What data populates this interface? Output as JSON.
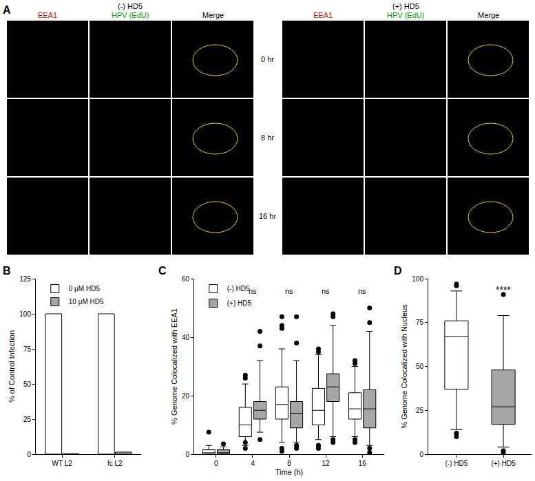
{
  "panel_a": {
    "label": "A",
    "groups": [
      "(-) HD5",
      "(+) HD5"
    ],
    "columns": [
      "EEA1",
      "HPV (EdU)",
      "Merge"
    ],
    "rows": [
      "0 hr",
      "8 hr",
      "16 hr"
    ]
  },
  "chart_data": [
    {
      "title": "B",
      "type": "bar",
      "categories": [
        "WT L2",
        "fc L2"
      ],
      "series": [
        {
          "name": "0 μM HD5",
          "color": "#ffffff",
          "values": [
            100,
            100
          ]
        },
        {
          "name": "10 μM HD5",
          "color": "#a6a6a6",
          "values": [
            0.3,
            1.5
          ]
        }
      ],
      "y_label": "% of Control Infection",
      "ylim": [
        0,
        125
      ],
      "yticks": [
        0,
        25,
        50,
        75,
        100,
        125
      ],
      "legend": "upper left",
      "grid": false
    },
    {
      "title": "C",
      "type": "box",
      "categories": [
        "0",
        "4",
        "8",
        "12",
        "16"
      ],
      "x_label": "Time (h)",
      "y_label": "% Genome Colocalized with EEA1",
      "ylim": [
        0,
        60
      ],
      "yticks": [
        0,
        20,
        40,
        60
      ],
      "legend": "upper left",
      "grid": false,
      "series": [
        {
          "name": "(-) HD5",
          "color": "#ffffff",
          "q1": [
            0,
            6,
            12,
            10,
            12
          ],
          "median": [
            0.5,
            10,
            17,
            15,
            15.5
          ],
          "q3": [
            1.5,
            16,
            23,
            22.5,
            21
          ],
          "lower": [
            0,
            3,
            4,
            5,
            6
          ],
          "upper": [
            3,
            24,
            36,
            34,
            30
          ],
          "outliers": [
            [
              7.5
            ],
            [
              27,
              26,
              4,
              2
            ],
            [
              44,
              43,
              47,
              2,
              1
            ],
            [
              36,
              35,
              3,
              2
            ],
            [
              32,
              31,
              5,
              4
            ]
          ]
        },
        {
          "name": "(+) HD5",
          "color": "#a6a6a6",
          "q1": [
            0,
            12,
            9,
            18,
            9
          ],
          "median": [
            0.5,
            15,
            14,
            23,
            15.5
          ],
          "q3": [
            1.5,
            18,
            18,
            27.5,
            22
          ],
          "lower": [
            0,
            7.5,
            4,
            6,
            3
          ],
          "upper": [
            2.5,
            32,
            32,
            44,
            42
          ],
          "outliers": [
            [
              3.5
            ],
            [
              42,
              37,
              5
            ],
            [
              47,
              38,
              3,
              2
            ],
            [
              48,
              47,
              5,
              4
            ],
            [
              50,
              45,
              2,
              0.5
            ]
          ]
        }
      ],
      "annotations": [
        {
          "category": "4",
          "text": "ns"
        },
        {
          "category": "8",
          "text": "ns"
        },
        {
          "category": "12",
          "text": "ns"
        },
        {
          "category": "16",
          "text": "ns"
        }
      ]
    },
    {
      "title": "D",
      "type": "box",
      "categories": [
        "(-) HD5",
        "(+) HD5"
      ],
      "y_label": "% Genome Colocalized with Nucleus",
      "ylim": [
        0,
        100
      ],
      "yticks": [
        0,
        25,
        50,
        75,
        100
      ],
      "grid": false,
      "series": [
        {
          "colors": [
            "#ffffff",
            "#a6a6a6"
          ],
          "q1": [
            37,
            17
          ],
          "median": [
            67,
            27
          ],
          "q3": [
            76,
            48
          ],
          "lower": [
            14,
            4
          ],
          "upper": [
            93,
            79
          ],
          "outliers": [
            [
              97,
              96,
              12,
              10
            ],
            [
              91,
              2,
              1
            ]
          ]
        }
      ],
      "annotations": [
        {
          "category": "(+) HD5",
          "text": "****"
        }
      ]
    }
  ]
}
